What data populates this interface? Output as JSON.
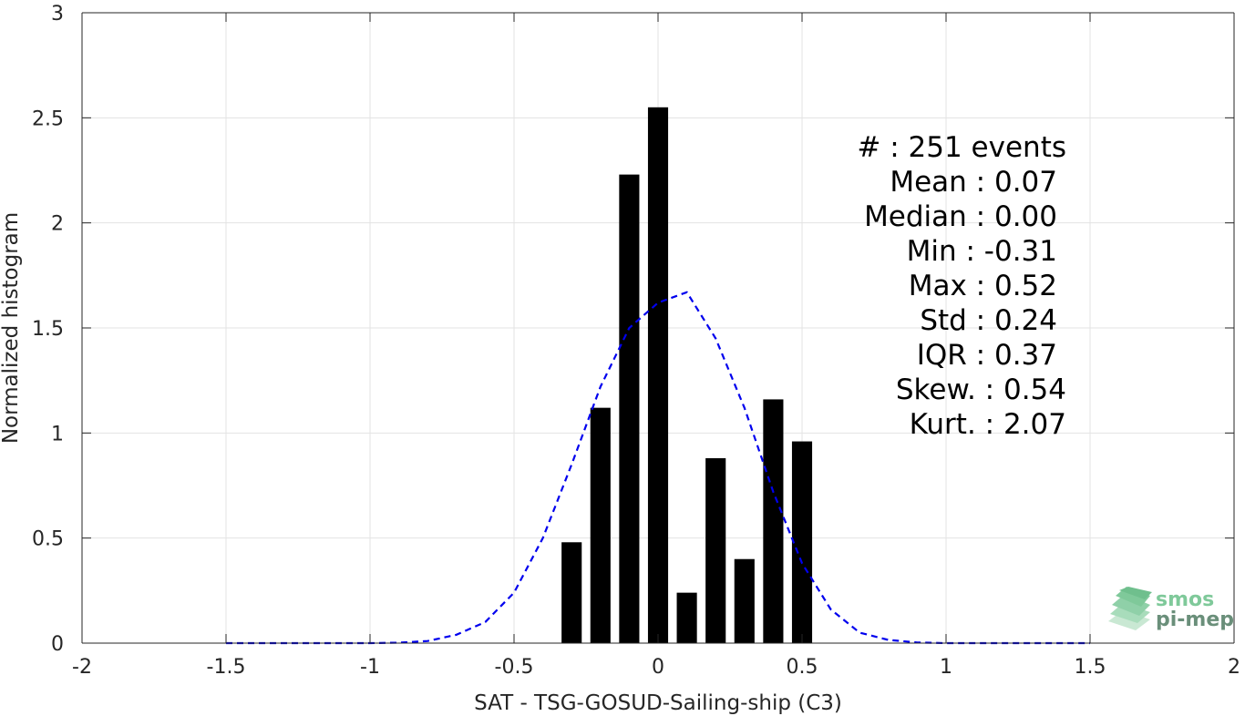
{
  "chart_data": {
    "type": "bar",
    "title": "",
    "xlabel": "SAT - TSG-GOSUD-Sailing-ship (C3)",
    "ylabel": "Normalized histogram",
    "xlim": [
      -2,
      2
    ],
    "ylim": [
      0,
      3
    ],
    "grid": true,
    "xticks": [
      -2,
      -1.5,
      -1,
      -0.5,
      0,
      0.5,
      1,
      1.5,
      2
    ],
    "xtick_labels": [
      "-2",
      "-1.5",
      "-1",
      "-0.5",
      "0",
      "0.5",
      "1",
      "1.5",
      "2"
    ],
    "yticks": [
      0,
      0.5,
      1,
      1.5,
      2,
      2.5,
      3
    ],
    "ytick_labels": [
      "0",
      "0.5",
      "1",
      "1.5",
      "2",
      "2.5",
      "3"
    ],
    "bar_color": "#000000",
    "bar_width": 0.07,
    "bars": {
      "x": [
        -0.3,
        -0.2,
        -0.1,
        0.0,
        0.1,
        0.2,
        0.3,
        0.4,
        0.5
      ],
      "values": [
        0.48,
        1.12,
        2.23,
        2.55,
        0.24,
        0.88,
        0.4,
        1.16,
        0.96
      ]
    },
    "series": [
      {
        "style": "dashed",
        "color": "#0000ee",
        "x": [
          -1.5,
          -1.4,
          -1.3,
          -1.2,
          -1.1,
          -1.0,
          -0.9,
          -0.8,
          -0.7,
          -0.6,
          -0.5,
          -0.4,
          -0.3,
          -0.2,
          -0.1,
          0.0,
          0.1,
          0.2,
          0.3,
          0.4,
          0.5,
          0.6,
          0.7,
          0.8,
          0.9,
          1.0,
          1.1,
          1.2,
          1.3,
          1.4,
          1.5
        ],
        "values": [
          0,
          0,
          0,
          0,
          0,
          0,
          0.002,
          0.01,
          0.04,
          0.1,
          0.24,
          0.5,
          0.85,
          1.22,
          1.5,
          1.62,
          1.67,
          1.45,
          1.12,
          0.72,
          0.38,
          0.16,
          0.05,
          0.015,
          0.003,
          0,
          0,
          0,
          0,
          0,
          0
        ]
      }
    ],
    "annotations": [
      "#  : 251 events",
      "Mean : 0.07",
      "Median : 0.00",
      "Min : -0.31",
      "Max : 0.52",
      "Std : 0.24",
      "IQR : 0.37",
      "Skew. : 0.54",
      "Kurt. : 2.07"
    ]
  },
  "logo": {
    "line1": "smos",
    "line2": "pi-mep",
    "color1": "#7fc99a",
    "color2": "#6a8f7a"
  }
}
